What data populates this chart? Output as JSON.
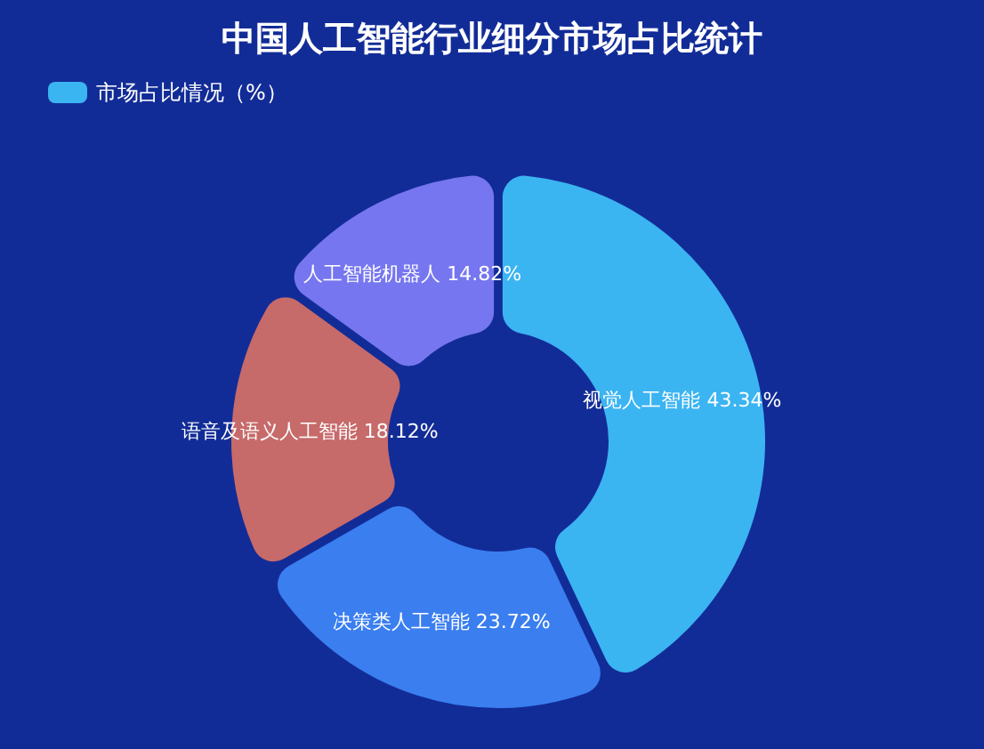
{
  "chart_data": {
    "type": "donut",
    "title": "中国人工智能行业细分市场占比统计",
    "legend": "top left",
    "categories": [
      "视觉人工智能",
      "决策类人工智能",
      "语音及语义人工智能",
      "人工智能机器人"
    ],
    "series": [
      {
        "name": "市场占比情况（%）",
        "values": [
          43.34,
          23.72,
          18.12,
          14.82
        ],
        "value_labels": [
          "43.34%",
          "23.72%",
          "18.12%",
          "14.82%"
        ]
      }
    ],
    "colors": [
      "#3bb4f2",
      "#3a7ef0",
      "#c76a6a",
      "#7676f0"
    ]
  }
}
